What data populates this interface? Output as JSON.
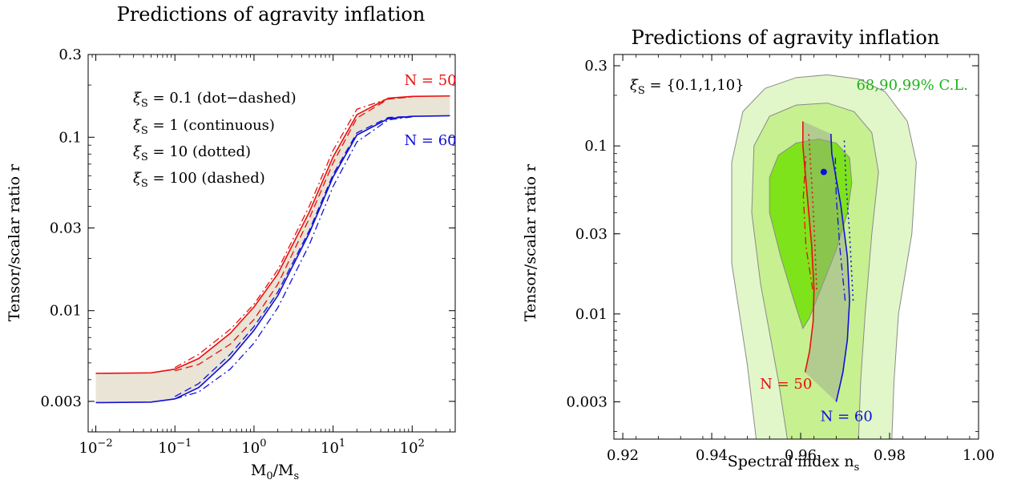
{
  "chart_data": [
    {
      "type": "line",
      "title": "Predictions of agravity inflation",
      "xlabel_main": "M",
      "xlabel_sub1": "0",
      "xlabel_mid": "/M",
      "xlabel_sub2": "s",
      "ylabel": "Tensor/scalar ratio r",
      "xscale": "log",
      "yscale": "log",
      "xlim": [
        0.008,
        350
      ],
      "ylim": [
        0.002,
        0.3
      ],
      "xticks": [
        {
          "value": 0.01,
          "base": "10",
          "exp": "−2"
        },
        {
          "value": 0.1,
          "base": "10",
          "exp": "−1"
        },
        {
          "value": 1,
          "base": "10",
          "exp": "0"
        },
        {
          "value": 10,
          "base": "10",
          "exp": "1"
        },
        {
          "value": 100,
          "base": "10",
          "exp": "2"
        }
      ],
      "yticks": [
        {
          "value": 0.003,
          "label": "0.003"
        },
        {
          "value": 0.01,
          "label": "0.01"
        },
        {
          "value": 0.03,
          "label": "0.03"
        },
        {
          "value": 0.1,
          "label": "0.1"
        },
        {
          "value": 0.3,
          "label": "0.3"
        }
      ],
      "legend_entries": [
        {
          "sym": "ξ",
          "sub": "S",
          "text": " = 0.1 (dot−dashed)"
        },
        {
          "sym": "ξ",
          "sub": "S",
          "text": " = 1 (continuous)"
        },
        {
          "sym": "ξ",
          "sub": "S",
          "text": " = 10 (dotted)"
        },
        {
          "sym": "ξ",
          "sub": "S",
          "text": " = 100 (dashed)"
        }
      ],
      "annotations": [
        {
          "text": "N = 50",
          "color": "#e8100f",
          "x": 170,
          "y": 0.2,
          "anchor": "middle"
        },
        {
          "text": "N = 60",
          "color": "#1010d8",
          "x": 170,
          "y": 0.09,
          "anchor": "middle"
        }
      ],
      "band": {
        "color": "#e9e4d6"
      },
      "series": [
        {
          "color": "#e8100f",
          "style": "continuous",
          "x": [
            0.01,
            0.05,
            0.1,
            0.2,
            0.5,
            1,
            2,
            5,
            10,
            20,
            50,
            100,
            300
          ],
          "y": [
            0.00435,
            0.00438,
            0.0046,
            0.0053,
            0.0074,
            0.0105,
            0.0163,
            0.037,
            0.077,
            0.135,
            0.168,
            0.172,
            0.173
          ]
        },
        {
          "color": "#1010d8",
          "style": "continuous",
          "x": [
            0.01,
            0.05,
            0.1,
            0.2,
            0.5,
            1,
            2,
            5,
            10,
            20,
            50,
            100,
            300
          ],
          "y": [
            0.00295,
            0.00297,
            0.0031,
            0.0036,
            0.0053,
            0.0077,
            0.0122,
            0.028,
            0.059,
            0.103,
            0.128,
            0.132,
            0.133
          ]
        },
        {
          "color": "#e8100f",
          "style": "dotdash",
          "x": [
            0.1,
            0.2,
            0.5,
            1,
            2,
            5,
            10,
            20,
            50,
            100
          ],
          "y": [
            0.0047,
            0.0056,
            0.0078,
            0.0109,
            0.0172,
            0.04,
            0.084,
            0.145,
            0.167,
            0.171
          ]
        },
        {
          "color": "#e8100f",
          "style": "dashed",
          "x": [
            0.1,
            0.2,
            0.5,
            1,
            2,
            5,
            10,
            20,
            50,
            100
          ],
          "y": [
            0.0045,
            0.0049,
            0.0064,
            0.0089,
            0.0142,
            0.034,
            0.071,
            0.129,
            0.166,
            0.171
          ]
        },
        {
          "color": "#1010d8",
          "style": "dotdash",
          "x": [
            0.1,
            0.2,
            0.5,
            1,
            2,
            5,
            10,
            20,
            50,
            100
          ],
          "y": [
            0.0031,
            0.0034,
            0.0046,
            0.0065,
            0.0104,
            0.024,
            0.052,
            0.094,
            0.126,
            0.131
          ]
        },
        {
          "color": "#1010d8",
          "style": "dashed",
          "x": [
            0.1,
            0.2,
            0.5,
            1,
            2,
            5,
            10,
            20,
            50,
            100
          ],
          "y": [
            0.0032,
            0.0038,
            0.0056,
            0.0081,
            0.0128,
            0.029,
            0.061,
            0.106,
            0.13,
            0.132
          ]
        }
      ]
    },
    {
      "type": "line",
      "title": "Predictions of agravity inflation",
      "xlabel_main": "Spectral index n",
      "xlabel_sub": "s",
      "ylabel": "Tensor/scalar ratio r",
      "yscale": "log",
      "xlim": [
        0.918,
        1.0
      ],
      "ylim": [
        0.0018,
        0.35
      ],
      "xticks": [
        {
          "value": 0.92,
          "label": "0.92"
        },
        {
          "value": 0.94,
          "label": "0.94"
        },
        {
          "value": 0.96,
          "label": "0.96"
        },
        {
          "value": 0.98,
          "label": "0.98"
        },
        {
          "value": 1.0,
          "label": "1.00"
        }
      ],
      "yticks": [
        {
          "value": 0.003,
          "label": "0.003"
        },
        {
          "value": 0.01,
          "label": "0.01"
        },
        {
          "value": 0.03,
          "label": "0.03"
        },
        {
          "value": 0.1,
          "label": "0.1"
        },
        {
          "value": 0.3,
          "label": "0.3"
        }
      ],
      "xi_label": {
        "sym": "ξ",
        "sub": "S",
        "text": " = {0.1,1,10}"
      },
      "cl_label": {
        "text": "68,90,99% C.L.",
        "color": "#22b21c"
      },
      "annotations": [
        {
          "text": "N = 50",
          "color": "#e8100f",
          "x": 0.9567,
          "y": 0.0036,
          "anchor": "middle"
        },
        {
          "text": "N = 60",
          "color": "#1010d8",
          "x": 0.9703,
          "y": 0.0023,
          "anchor": "middle"
        }
      ],
      "best_fit": {
        "x": 0.9652,
        "y": 0.07,
        "color": "#1010d8"
      },
      "regions": [
        {
          "level": "99%",
          "color": "#e1f7c9",
          "x": [
            0.95,
            0.948,
            0.9445,
            0.9445,
            0.947,
            0.952,
            0.959,
            0.966,
            0.973,
            0.979,
            0.984,
            0.986,
            0.985,
            0.982,
            0.981,
            0.9805
          ],
          "y": [
            0.0018,
            0.005,
            0.02,
            0.08,
            0.16,
            0.22,
            0.255,
            0.265,
            0.25,
            0.21,
            0.14,
            0.08,
            0.03,
            0.01,
            0.004,
            0.0018
          ]
        },
        {
          "level": "90%",
          "color": "#c7f091",
          "x": [
            0.957,
            0.955,
            0.951,
            0.949,
            0.9495,
            0.953,
            0.959,
            0.966,
            0.972,
            0.976,
            0.9775,
            0.976,
            0.9745,
            0.9735,
            0.973
          ],
          "y": [
            0.0018,
            0.004,
            0.015,
            0.04,
            0.1,
            0.15,
            0.175,
            0.18,
            0.16,
            0.12,
            0.07,
            0.03,
            0.01,
            0.004,
            0.0018
          ]
        },
        {
          "level": "68%",
          "color": "#7ee31a",
          "x": [
            0.9605,
            0.9585,
            0.9555,
            0.953,
            0.953,
            0.955,
            0.959,
            0.964,
            0.968,
            0.971,
            0.9715,
            0.9705,
            0.968,
            0.9645,
            0.962,
            0.9605
          ],
          "y": [
            0.0082,
            0.012,
            0.022,
            0.04,
            0.065,
            0.088,
            0.104,
            0.11,
            0.104,
            0.085,
            0.06,
            0.04,
            0.024,
            0.014,
            0.0095,
            0.0082
          ]
        }
      ],
      "band": {
        "color": "#9aa08f",
        "opacity": 0.45
      },
      "series": [
        {
          "color": "#e8100f",
          "style": "continuous",
          "x": [
            0.961,
            0.962,
            0.9628,
            0.963,
            0.9625,
            0.9615,
            0.9605,
            0.9605
          ],
          "y": [
            0.0045,
            0.006,
            0.009,
            0.014,
            0.025,
            0.05,
            0.1,
            0.14
          ]
        },
        {
          "color": "#1010d8",
          "style": "continuous",
          "x": [
            0.968,
            0.9695,
            0.9705,
            0.971,
            0.9705,
            0.969,
            0.967,
            0.9668
          ],
          "y": [
            0.003,
            0.0045,
            0.007,
            0.012,
            0.022,
            0.045,
            0.09,
            0.118
          ]
        },
        {
          "color": "#e8100f",
          "style": "dotdash",
          "x": [
            0.9627,
            0.9612,
            0.9606,
            0.9612
          ],
          "y": [
            0.014,
            0.025,
            0.05,
            0.09
          ]
        },
        {
          "color": "#e8100f",
          "style": "dotted",
          "x": [
            0.9636,
            0.9631,
            0.9625,
            0.9618
          ],
          "y": [
            0.014,
            0.03,
            0.06,
            0.12
          ]
        },
        {
          "color": "#1010d8",
          "style": "dotdash",
          "x": [
            0.97,
            0.9688,
            0.968,
            0.9678
          ],
          "y": [
            0.012,
            0.025,
            0.05,
            0.085
          ]
        },
        {
          "color": "#1010d8",
          "style": "dotted",
          "x": [
            0.9718,
            0.971,
            0.9702,
            0.9698
          ],
          "y": [
            0.012,
            0.03,
            0.06,
            0.11
          ]
        }
      ]
    }
  ]
}
